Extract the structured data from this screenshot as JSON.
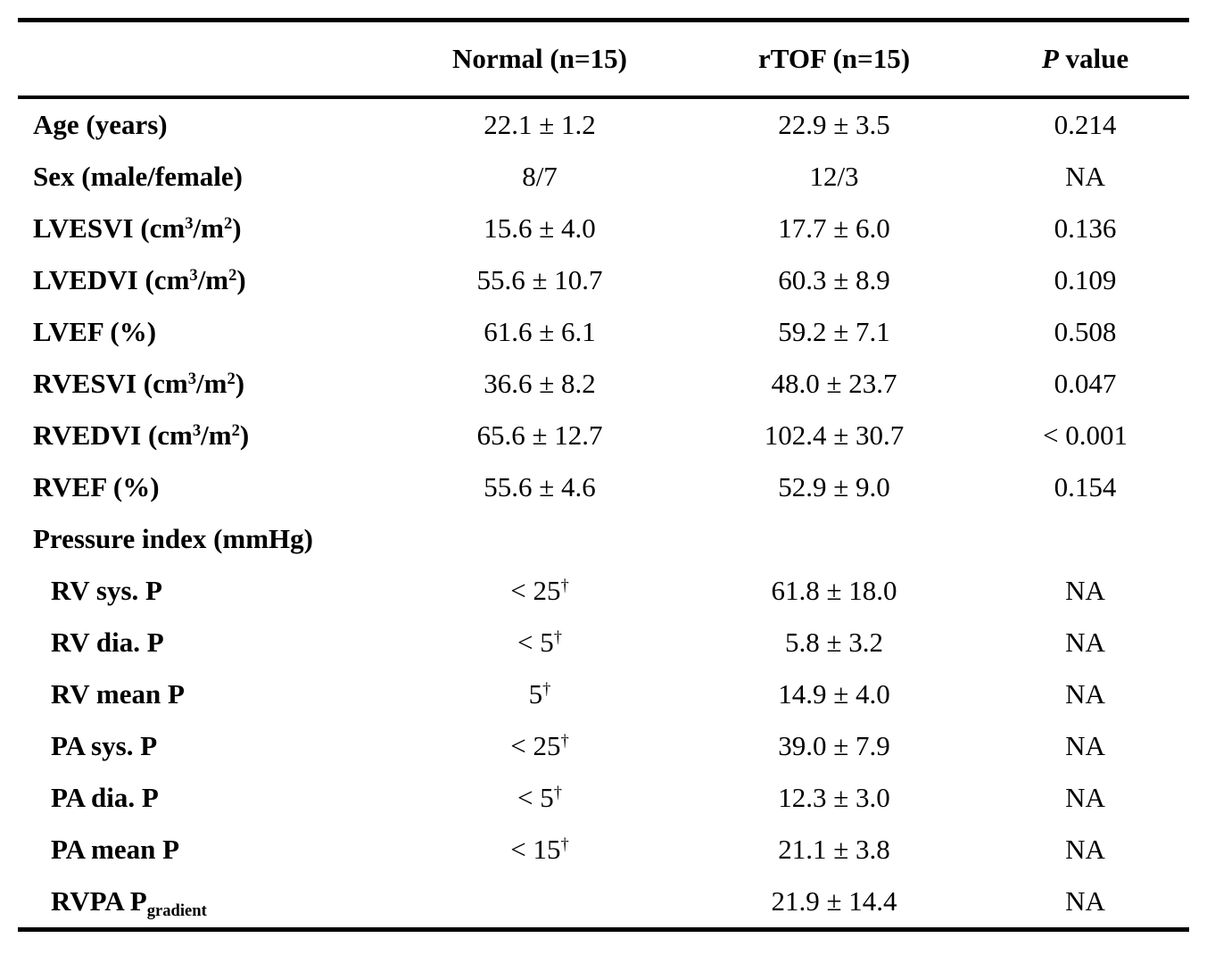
{
  "page": {
    "background_color": "#ffffff",
    "text_color": "#000000"
  },
  "table": {
    "header": {
      "col_label": "",
      "col_normal": "Normal (n=15)",
      "col_rtof": "rTOF (n=15)",
      "col_pvalue": "*P* value"
    },
    "rows": [
      {
        "label": "Age (years)",
        "normal": "22.1 ± 1.2",
        "rtof": "22.9 ± 3.5",
        "p": "0.214"
      },
      {
        "label": "Sex (male/female)",
        "normal": "8/7",
        "rtof": "12/3",
        "p": "NA"
      },
      {
        "label": "LVESVI (cm^{3}/m^{2})",
        "normal": "15.6 ± 4.0",
        "rtof": "17.7 ± 6.0",
        "p": "0.136"
      },
      {
        "label": "LVEDVI (cm^{3}/m^{2})",
        "normal": "55.6 ± 10.7",
        "rtof": "60.3 ± 8.9",
        "p": "0.109"
      },
      {
        "label": "LVEF (%)",
        "normal": "61.6 ± 6.1",
        "rtof": "59.2 ± 7.1",
        "p": "0.508"
      },
      {
        "label": "RVESVI (cm^{3}/m^{2})",
        "normal": "36.6 ± 8.2",
        "rtof": "48.0 ± 23.7",
        "p": "0.047"
      },
      {
        "label": "RVEDVI (cm^{3}/m^{2})",
        "normal": "65.6 ± 12.7",
        "rtof": "102.4 ± 30.7",
        "p": "< 0.001"
      },
      {
        "label": "RVEF (%)",
        "normal": "55.6 ± 4.6",
        "rtof": "52.9 ± 9.0",
        "p": "0.154"
      },
      {
        "label": "Pressure index (mmHg)",
        "normal": "",
        "rtof": "",
        "p": ""
      },
      {
        "label": "RV sys. P",
        "normal": "< 25^{†}",
        "rtof": "61.8 ± 18.0",
        "p": "NA"
      },
      {
        "label": "RV dia. P",
        "normal": "< 5^{†}",
        "rtof": "5.8 ± 3.2",
        "p": "NA"
      },
      {
        "label": "RV mean P",
        "normal": "5^{†}",
        "rtof": "14.9 ± 4.0",
        "p": "NA"
      },
      {
        "label": "PA sys. P",
        "normal": "< 25^{†}",
        "rtof": "39.0 ± 7.9",
        "p": "NA"
      },
      {
        "label": "PA dia. P",
        "normal": "< 5^{†}",
        "rtof": "12.3 ± 3.0",
        "p": "NA"
      },
      {
        "label": "PA mean P",
        "normal": "< 15^{†}",
        "rtof": "21.1 ± 3.8",
        "p": "NA"
      },
      {
        "label": "RVPA P_{gradient}",
        "normal": "",
        "rtof": "21.9 ± 14.4",
        "p": "NA"
      }
    ]
  }
}
